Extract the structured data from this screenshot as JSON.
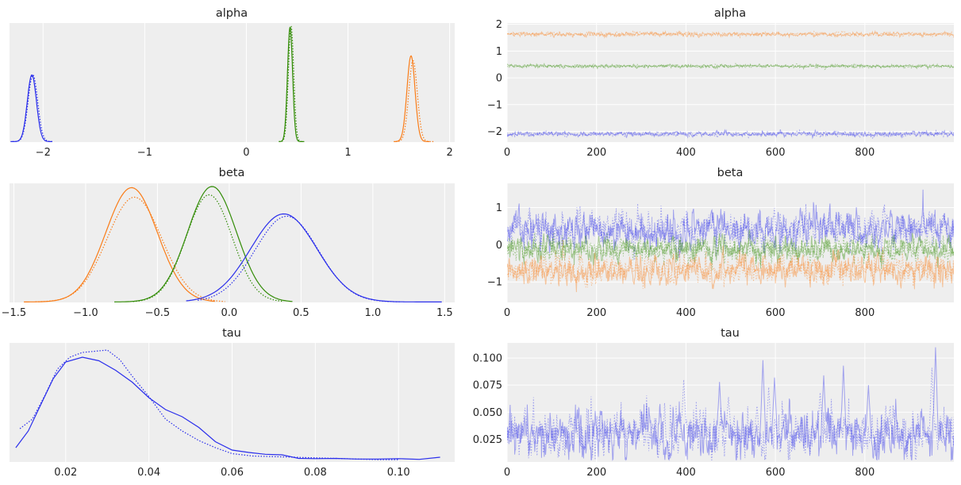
{
  "colors": {
    "blue": "#2a2eec",
    "orange": "#fa7c17",
    "green": "#328c06"
  },
  "chart_data": [
    {
      "type": "line",
      "title": "alpha",
      "xlim": [
        -2.33,
        2.05
      ],
      "ylim": [
        0,
        1.0
      ],
      "xticks": [
        -2,
        -1,
        0,
        1,
        2
      ],
      "xtick_labels": [
        "−2",
        "−1",
        "0",
        "1",
        "2"
      ],
      "yticks_visible": false,
      "grid": true,
      "series": [
        {
          "color": "blue",
          "kind": "density",
          "range": [
            -2.32,
            -1.91
          ],
          "mean": -2.11,
          "sd": 0.045,
          "peak": 0.56
        },
        {
          "color": "blue",
          "kind": "density",
          "dotted": true,
          "range": [
            -2.3,
            -1.9
          ],
          "mean": -2.1,
          "sd": 0.047,
          "peak": 0.56
        },
        {
          "color": "green",
          "kind": "density",
          "range": [
            0.32,
            0.56
          ],
          "mean": 0.43,
          "sd": 0.025,
          "peak": 0.96
        },
        {
          "color": "green",
          "kind": "density",
          "dotted": true,
          "range": [
            0.32,
            0.57
          ],
          "mean": 0.44,
          "sd": 0.026,
          "peak": 0.97
        },
        {
          "color": "orange",
          "kind": "density",
          "range": [
            1.45,
            1.8
          ],
          "mean": 1.62,
          "sd": 0.04,
          "peak": 0.72
        },
        {
          "color": "orange",
          "kind": "density",
          "dotted": true,
          "range": [
            1.47,
            1.84
          ],
          "mean": 1.64,
          "sd": 0.042,
          "peak": 0.68
        }
      ]
    },
    {
      "type": "line",
      "title": "alpha",
      "xlim": [
        0,
        999
      ],
      "ylim": [
        -2.4,
        2.05
      ],
      "xticks": [
        0,
        200,
        400,
        600,
        800
      ],
      "xtick_labels": [
        "0",
        "200",
        "400",
        "600",
        "800"
      ],
      "yticks": [
        2,
        1,
        0,
        -1,
        -2
      ],
      "ytick_labels": [
        "2",
        "1",
        "0",
        "−1",
        "−2"
      ],
      "grid": true,
      "series": [
        {
          "color": "orange",
          "kind": "trace",
          "mean": 1.63,
          "sd": 0.04,
          "n": 1000
        },
        {
          "color": "orange",
          "kind": "trace",
          "dotted": true,
          "mean": 1.64,
          "sd": 0.04,
          "n": 1000
        },
        {
          "color": "green",
          "kind": "trace",
          "mean": 0.44,
          "sd": 0.03,
          "n": 1000
        },
        {
          "color": "green",
          "kind": "trace",
          "dotted": true,
          "mean": 0.44,
          "sd": 0.03,
          "n": 1000
        },
        {
          "color": "blue",
          "kind": "trace",
          "mean": -2.1,
          "sd": 0.045,
          "n": 1000
        },
        {
          "color": "blue",
          "kind": "trace",
          "dotted": true,
          "mean": -2.1,
          "sd": 0.045,
          "n": 1000
        }
      ]
    },
    {
      "type": "line",
      "title": "beta",
      "xlim": [
        -1.53,
        1.57
      ],
      "ylim": [
        0,
        1.0
      ],
      "xticks": [
        -1.5,
        -1.0,
        -0.5,
        0.0,
        0.5,
        1.0,
        1.5
      ],
      "xtick_labels": [
        "−1.5",
        "−1.0",
        "−0.5",
        "0.0",
        "0.5",
        "1.0",
        "1.5"
      ],
      "yticks_visible": false,
      "grid": true,
      "series": [
        {
          "color": "orange",
          "kind": "density",
          "range": [
            -1.43,
            -0.1
          ],
          "mean": -0.68,
          "sd": 0.18,
          "peak": 0.96
        },
        {
          "color": "orange",
          "kind": "density",
          "dotted": true,
          "range": [
            -1.35,
            -0.03
          ],
          "mean": -0.66,
          "sd": 0.19,
          "peak": 0.88
        },
        {
          "color": "green",
          "kind": "density",
          "range": [
            -0.8,
            0.44
          ],
          "mean": -0.12,
          "sd": 0.17,
          "peak": 0.97
        },
        {
          "color": "green",
          "kind": "density",
          "dotted": true,
          "range": [
            -0.67,
            0.38
          ],
          "mean": -0.14,
          "sd": 0.16,
          "peak": 0.9
        },
        {
          "color": "blue",
          "kind": "density",
          "range": [
            -0.3,
            1.48
          ],
          "mean": 0.38,
          "sd": 0.23,
          "peak": 0.74
        },
        {
          "color": "blue",
          "kind": "density",
          "dotted": true,
          "range": [
            -0.22,
            1.2
          ],
          "mean": 0.4,
          "sd": 0.22,
          "peak": 0.72
        }
      ]
    },
    {
      "type": "line",
      "title": "beta",
      "xlim": [
        0,
        999
      ],
      "ylim": [
        -1.55,
        1.65
      ],
      "xticks": [
        0,
        200,
        400,
        600,
        800
      ],
      "xtick_labels": [
        "0",
        "200",
        "400",
        "600",
        "800"
      ],
      "yticks": [
        1,
        0,
        -1
      ],
      "ytick_labels": [
        "1",
        "0",
        "−1"
      ],
      "grid": true,
      "series": [
        {
          "color": "blue",
          "kind": "trace",
          "mean": 0.4,
          "sd": 0.24,
          "n": 1000
        },
        {
          "color": "blue",
          "kind": "trace",
          "dotted": true,
          "mean": 0.42,
          "sd": 0.24,
          "n": 1000
        },
        {
          "color": "green",
          "kind": "trace",
          "mean": -0.12,
          "sd": 0.17,
          "n": 1000
        },
        {
          "color": "green",
          "kind": "trace",
          "dotted": true,
          "mean": -0.12,
          "sd": 0.17,
          "n": 1000
        },
        {
          "color": "orange",
          "kind": "trace",
          "mean": -0.67,
          "sd": 0.19,
          "n": 1000
        },
        {
          "color": "orange",
          "kind": "trace",
          "dotted": true,
          "mean": -0.66,
          "sd": 0.19,
          "n": 1000
        }
      ]
    },
    {
      "type": "line",
      "title": "tau",
      "xlim": [
        0.0065,
        0.1135
      ],
      "ylim": [
        0,
        1.0
      ],
      "xticks": [
        0.02,
        0.04,
        0.06,
        0.08,
        0.1
      ],
      "xtick_labels": [
        "0.02",
        "0.04",
        "0.06",
        "0.08",
        "0.10"
      ],
      "yticks_visible": false,
      "grid": true,
      "series": [
        {
          "color": "blue",
          "kind": "points",
          "x": [
            0.008,
            0.011,
            0.014,
            0.017,
            0.02,
            0.024,
            0.028,
            0.032,
            0.036,
            0.04,
            0.044,
            0.048,
            0.052,
            0.056,
            0.06,
            0.064,
            0.068,
            0.072,
            0.076,
            0.08,
            0.085,
            0.09,
            0.095,
            0.1,
            0.105,
            0.11
          ],
          "y": [
            0.12,
            0.26,
            0.48,
            0.7,
            0.84,
            0.88,
            0.85,
            0.77,
            0.67,
            0.54,
            0.44,
            0.38,
            0.29,
            0.17,
            0.1,
            0.08,
            0.065,
            0.06,
            0.03,
            0.028,
            0.03,
            0.025,
            0.025,
            0.028,
            0.022,
            0.04
          ]
        },
        {
          "color": "blue",
          "kind": "points",
          "dotted": true,
          "x": [
            0.009,
            0.012,
            0.015,
            0.018,
            0.021,
            0.024,
            0.027,
            0.03,
            0.033,
            0.036,
            0.04,
            0.044,
            0.048,
            0.052,
            0.056,
            0.06,
            0.065,
            0.07,
            0.075,
            0.08,
            0.085,
            0.09,
            0.095,
            0.1
          ],
          "y": [
            0.28,
            0.36,
            0.56,
            0.78,
            0.88,
            0.92,
            0.93,
            0.94,
            0.86,
            0.72,
            0.55,
            0.36,
            0.26,
            0.18,
            0.12,
            0.07,
            0.05,
            0.045,
            0.04,
            0.035,
            0.03,
            0.025,
            0.02,
            0.02
          ]
        }
      ]
    },
    {
      "type": "line",
      "title": "tau",
      "xlim": [
        0,
        999
      ],
      "ylim": [
        0.004,
        0.114
      ],
      "xticks": [
        0,
        200,
        400,
        600,
        800
      ],
      "xtick_labels": [
        "0",
        "200",
        "400",
        "600",
        "800"
      ],
      "yticks": [
        0.1,
        0.075,
        0.05,
        0.025
      ],
      "ytick_labels": [
        "0.100",
        "0.075",
        "0.050",
        "0.025"
      ],
      "grid": true,
      "series": [
        {
          "color": "blue",
          "kind": "trace",
          "mean": 0.03,
          "sd": 0.011,
          "n": 1000,
          "spikes": [
            [
              572,
              0.098
            ],
            [
              598,
              0.082
            ],
            [
              708,
              0.084
            ],
            [
              752,
              0.093
            ],
            [
              808,
              0.075
            ],
            [
              958,
              0.11
            ],
            [
              475,
              0.078
            ]
          ]
        },
        {
          "color": "blue",
          "kind": "trace",
          "dotted": true,
          "mean": 0.031,
          "sd": 0.011,
          "n": 1000,
          "spikes": [
            [
              40,
              0.054
            ],
            [
              395,
              0.08
            ],
            [
              495,
              0.064
            ],
            [
              585,
              0.073
            ],
            [
              700,
              0.068
            ],
            [
              950,
              0.091
            ]
          ]
        }
      ]
    }
  ]
}
